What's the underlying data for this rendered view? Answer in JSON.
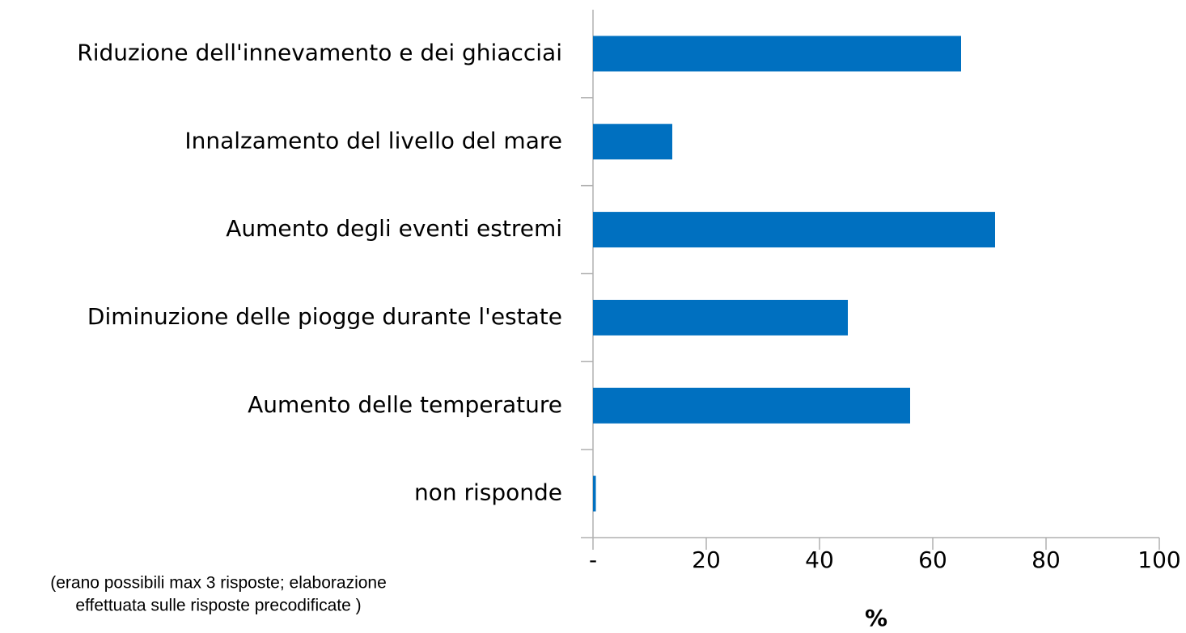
{
  "chart_data": {
    "type": "hbar",
    "categories": [
      "Riduzione dell'innevamento e dei ghiacciai",
      "Innalzamento del livello del mare",
      "Aumento degli eventi estremi",
      "Diminuzione delle piogge durante l'estate",
      "Aumento delle temperature",
      "non risponde"
    ],
    "values": [
      65,
      14,
      71,
      45,
      56,
      0.5
    ],
    "color": "#0070c0",
    "xlim": [
      0,
      100
    ],
    "xticks": [
      {
        "value": 0,
        "label": "-"
      },
      20,
      40,
      60,
      80,
      100
    ],
    "x_label": "%",
    "note": [
      "(erano possibili max 3 risposte; elaborazione",
      "effettuata sulle risposte precodificate )"
    ]
  }
}
